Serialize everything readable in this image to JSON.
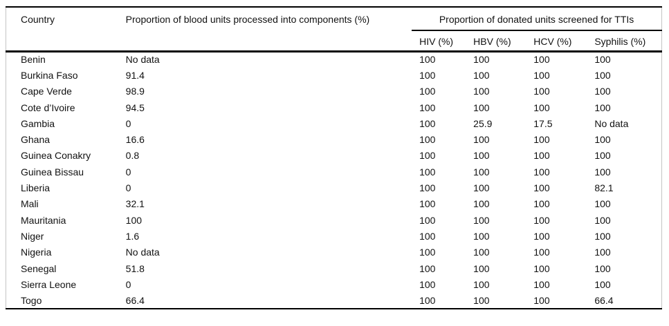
{
  "table": {
    "columns": {
      "country": "Country",
      "components": "Proportion of blood units processed into components (%)",
      "tti_group": "Proportion of donated units screened for TTIs",
      "hiv": "HIV (%)",
      "hbv": "HBV (%)",
      "hcv": "HCV (%)",
      "syphilis": "Syphilis (%)"
    },
    "rows": [
      {
        "country": "Benin",
        "components": "No data",
        "hiv": "100",
        "hbv": "100",
        "hcv": "100",
        "syphilis": "100"
      },
      {
        "country": "Burkina Faso",
        "components": "91.4",
        "hiv": "100",
        "hbv": "100",
        "hcv": "100",
        "syphilis": "100"
      },
      {
        "country": "Cape Verde",
        "components": "98.9",
        "hiv": "100",
        "hbv": "100",
        "hcv": "100",
        "syphilis": "100"
      },
      {
        "country": "Cote d’Ivoire",
        "components": "94.5",
        "hiv": "100",
        "hbv": "100",
        "hcv": "100",
        "syphilis": "100"
      },
      {
        "country": "Gambia",
        "components": "0",
        "hiv": "100",
        "hbv": "25.9",
        "hcv": "17.5",
        "syphilis": "No data"
      },
      {
        "country": "Ghana",
        "components": "16.6",
        "hiv": "100",
        "hbv": "100",
        "hcv": "100",
        "syphilis": "100"
      },
      {
        "country": "Guinea Conakry",
        "components": "0.8",
        "hiv": "100",
        "hbv": "100",
        "hcv": "100",
        "syphilis": "100"
      },
      {
        "country": "Guinea Bissau",
        "components": "0",
        "hiv": "100",
        "hbv": "100",
        "hcv": "100",
        "syphilis": "100"
      },
      {
        "country": "Liberia",
        "components": "0",
        "hiv": "100",
        "hbv": "100",
        "hcv": "100",
        "syphilis": "82.1"
      },
      {
        "country": "Mali",
        "components": "32.1",
        "hiv": "100",
        "hbv": "100",
        "hcv": "100",
        "syphilis": "100"
      },
      {
        "country": "Mauritania",
        "components": "100",
        "hiv": "100",
        "hbv": "100",
        "hcv": "100",
        "syphilis": "100"
      },
      {
        "country": "Niger",
        "components": "1.6",
        "hiv": "100",
        "hbv": "100",
        "hcv": "100",
        "syphilis": "100"
      },
      {
        "country": "Nigeria",
        "components": "No data",
        "hiv": "100",
        "hbv": "100",
        "hcv": "100",
        "syphilis": "100"
      },
      {
        "country": "Senegal",
        "components": "51.8",
        "hiv": "100",
        "hbv": "100",
        "hcv": "100",
        "syphilis": "100"
      },
      {
        "country": "Sierra Leone",
        "components": "0",
        "hiv": "100",
        "hbv": "100",
        "hcv": "100",
        "syphilis": "100"
      },
      {
        "country": "Togo",
        "components": "66.4",
        "hiv": "100",
        "hbv": "100",
        "hcv": "100",
        "syphilis": "66.4"
      }
    ]
  }
}
